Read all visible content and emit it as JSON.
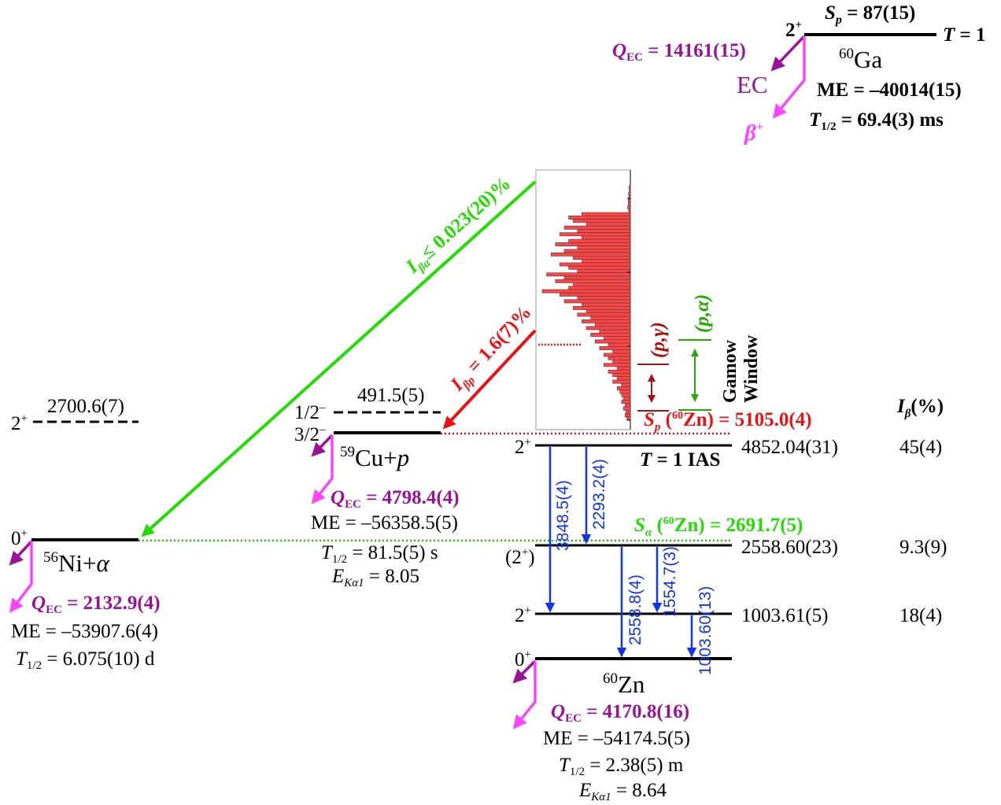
{
  "colors": {
    "purple": "#9a119a",
    "pink": "#ff44ff",
    "green": "#22dd00",
    "red": "#ee1111",
    "darkred": "#aa1111",
    "blue": "#1133ee"
  },
  "ga60": {
    "spin": "2",
    "parity": "+",
    "sp_value": " = 87(15)",
    "isospin_value": " = 1",
    "qec_value": " = 14161(15)",
    "ec_label": "EC",
    "beta_label": "β",
    "beta_sup": "+",
    "mass_number": "60",
    "element": "Ga",
    "me": "ME = –40014(15)",
    "halflife_value": " = 69.4(3) ms"
  },
  "cu59": {
    "excited_spin": "1/2",
    "excited_parity": "–",
    "excited_energy": "491.5(5)",
    "ground_spin": "3/2",
    "ground_parity": "–",
    "mass_number": "59",
    "element": "Cu+",
    "particle": "p",
    "qec_value": " = 4798.4(4)",
    "me": "ME = –56358.5(5)",
    "halflife_value": " = 81.5(5) s",
    "eka1_value": " = 8.05"
  },
  "ni56": {
    "excited_spin": "2",
    "excited_parity": "+",
    "excited_energy": "2700.6(7)",
    "ground_spin": "0",
    "ground_parity": "+",
    "mass_number": "56",
    "element": "Ni+",
    "particle": "α",
    "qec_value": " = 2132.9(4)",
    "me": "ME = –53907.6(4)",
    "halflife_value": " = 6.075(10) d"
  },
  "zn60": {
    "mass_number": "60",
    "element": "Zn",
    "qec_value": " = 4170.8(16)",
    "me": "ME = –54174.5(5)",
    "halflife_value": " = 2.38(5) m",
    "eka1_value": " = 8.64",
    "levels": [
      {
        "spin": "2",
        "parity": "+",
        "energy": "4852.04(31)",
        "ibeta": "45(4)"
      },
      {
        "spin": "(2",
        "parity": "+",
        "spin_close": ")",
        "energy": "2558.60(23)",
        "ibeta": "9.3(9)"
      },
      {
        "spin": "2",
        "parity": "+",
        "energy": "1003.61(5)",
        "ibeta": "18(4)"
      },
      {
        "spin": "0",
        "parity": "+",
        "energy": "",
        "ibeta": ""
      }
    ],
    "ias_label_value": " = 1 IAS",
    "sp_value": " = 5105.0(4)",
    "sa_value": " = 2691.7(5)",
    "sp_sym": "S",
    "sp_sub": "p",
    "sa_sym": "S",
    "sa_sub": "α",
    "zn_ref_sup": "60",
    "zn_ref_el": "Zn)"
  },
  "ibeta_header": "(%)",
  "beta_alpha_label": "≤ 0.023(20)%",
  "beta_p_label": " = 1.6(7)%",
  "gamow": {
    "line1": "Gamow",
    "line2": "Window",
    "pg": "(p,γ)",
    "pa": "(p,α)"
  },
  "transitions": [
    "3848.5(4)",
    "2293.2(4)",
    "2558.8(4)",
    "1554.7(3)",
    "1003.60(13)"
  ],
  "histogram": {
    "description_free": true,
    "counts": [
      0.3,
      0.25,
      0.4,
      0.35,
      0.5,
      0.45,
      0.6,
      0.4,
      0.55,
      0.7,
      0.65,
      0.5,
      0.75,
      0.6,
      0.8,
      0.55,
      0.7,
      0.85,
      0.6,
      0.75,
      0.9,
      0.65,
      0.55,
      0.8,
      0.7,
      0.6,
      0.95,
      0.75,
      0.85,
      0.65,
      0.7,
      1.0,
      0.8,
      0.6,
      0.75,
      0.55,
      0.65,
      0.5,
      0.6,
      0.45,
      0.55,
      0.4,
      0.5,
      0.35,
      0.45,
      0.3,
      0.4,
      0.25,
      0.35,
      0.2,
      0.3,
      0.25,
      0.2,
      0.3,
      0.15,
      0.25,
      0.2,
      0.15,
      0.2,
      0.1,
      0.15,
      0.12,
      0.1,
      0.08,
      0.1,
      0.06,
      0.08,
      0.05,
      0.06,
      0.04
    ]
  }
}
